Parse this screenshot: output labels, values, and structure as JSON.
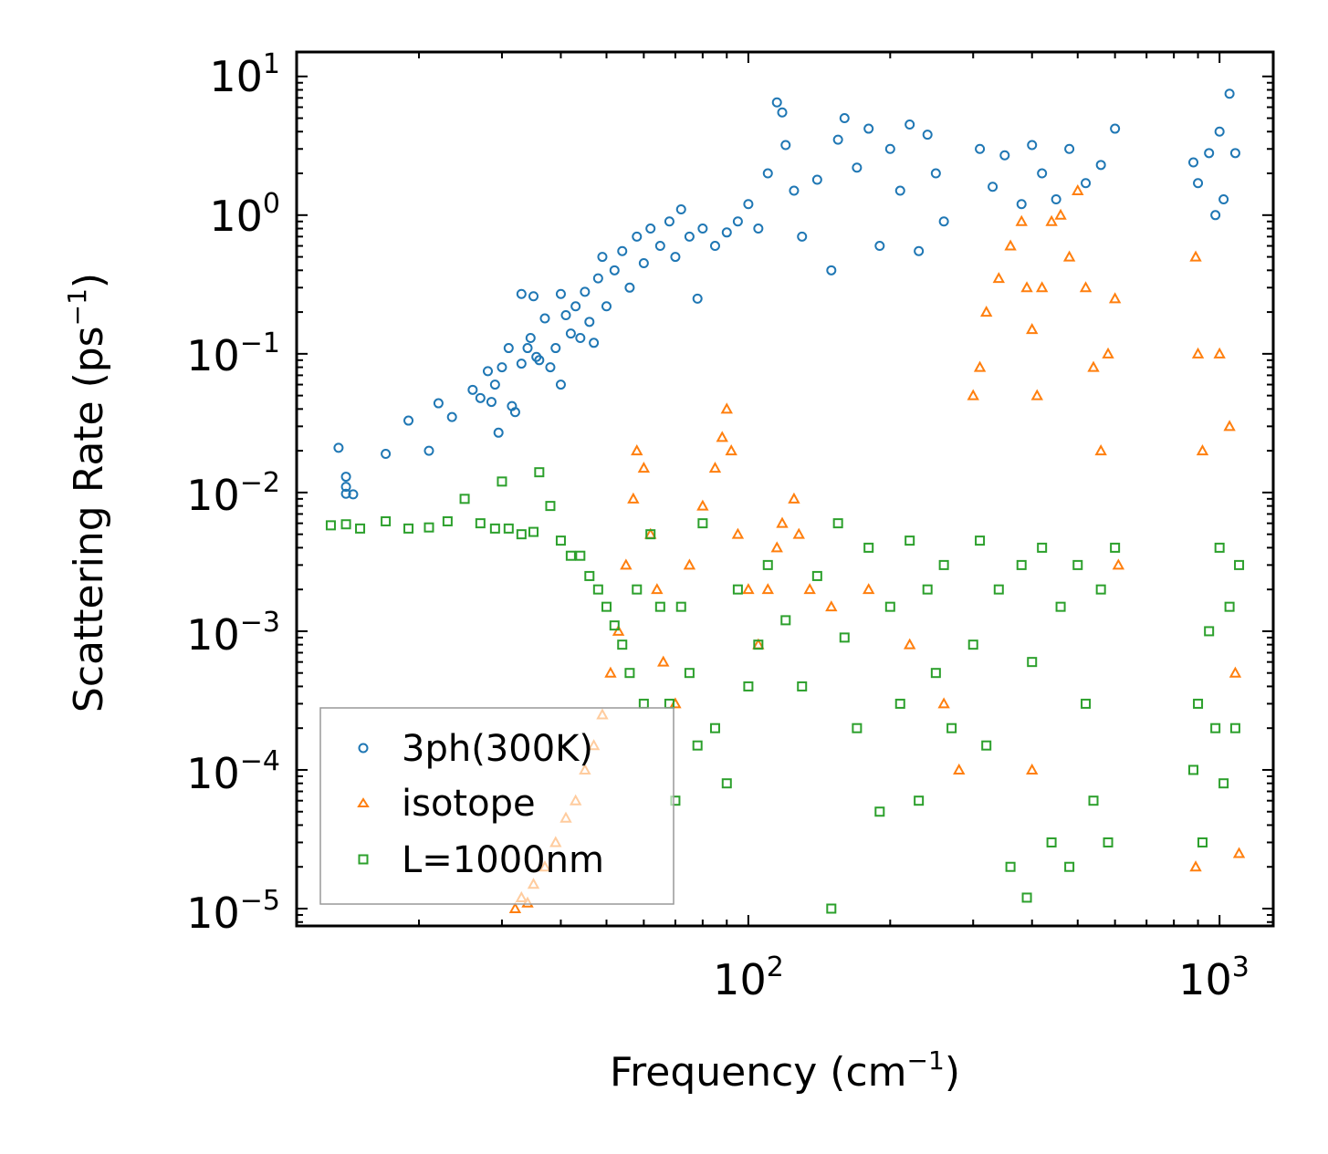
{
  "chart_data": {
    "type": "scatter",
    "title": "",
    "xlabel": "Frequency (cm",
    "xlabel_sup": "−1",
    "xlabel_tail": ")",
    "ylabel": "Scattering Rate (ps",
    "ylabel_sup": "−1",
    "ylabel_tail": ")",
    "xscale": "log",
    "yscale": "log",
    "xlim": [
      11,
      1300
    ],
    "ylim": [
      7.5e-06,
      15
    ],
    "xticks": [
      {
        "base": "10",
        "exp": "2",
        "value": 100
      },
      {
        "base": "10",
        "exp": "3",
        "value": 1000
      }
    ],
    "yticks": [
      {
        "base": "10",
        "exp": "1",
        "value": 10
      },
      {
        "base": "10",
        "exp": "0",
        "value": 1
      },
      {
        "base": "10",
        "exp": "−1",
        "value": 0.1
      },
      {
        "base": "10",
        "exp": "−2",
        "value": 0.01
      },
      {
        "base": "10",
        "exp": "−3",
        "value": 0.001
      },
      {
        "base": "10",
        "exp": "−4",
        "value": 0.0001
      },
      {
        "base": "10",
        "exp": "−5",
        "value": 1e-05
      }
    ],
    "legend_position": "lower-left",
    "series": [
      {
        "name": "3ph(300K)",
        "marker": "circle",
        "color": "#1f77b4",
        "points": [
          [
            13.5,
            0.021
          ],
          [
            14,
            0.013
          ],
          [
            14,
            0.011
          ],
          [
            14,
            0.0098
          ],
          [
            14.5,
            0.0097
          ],
          [
            17,
            0.019
          ],
          [
            19,
            0.033
          ],
          [
            21,
            0.02
          ],
          [
            22,
            0.044
          ],
          [
            23.5,
            0.035
          ],
          [
            26,
            0.055
          ],
          [
            27,
            0.048
          ],
          [
            28,
            0.075
          ],
          [
            28.5,
            0.045
          ],
          [
            29,
            0.06
          ],
          [
            29.5,
            0.027
          ],
          [
            30,
            0.08
          ],
          [
            31,
            0.11
          ],
          [
            31.5,
            0.042
          ],
          [
            32,
            0.038
          ],
          [
            33,
            0.27
          ],
          [
            33,
            0.085
          ],
          [
            34,
            0.11
          ],
          [
            34.5,
            0.13
          ],
          [
            35,
            0.26
          ],
          [
            35.5,
            0.095
          ],
          [
            36,
            0.09
          ],
          [
            37,
            0.18
          ],
          [
            38,
            0.08
          ],
          [
            39,
            0.11
          ],
          [
            40,
            0.27
          ],
          [
            40,
            0.06
          ],
          [
            41,
            0.19
          ],
          [
            42,
            0.14
          ],
          [
            43,
            0.22
          ],
          [
            44,
            0.13
          ],
          [
            45,
            0.28
          ],
          [
            46,
            0.17
          ],
          [
            47,
            0.12
          ],
          [
            48,
            0.35
          ],
          [
            49,
            0.5
          ],
          [
            50,
            0.22
          ],
          [
            52,
            0.4
          ],
          [
            54,
            0.55
          ],
          [
            56,
            0.3
          ],
          [
            58,
            0.7
          ],
          [
            60,
            0.45
          ],
          [
            62,
            0.8
          ],
          [
            65,
            0.6
          ],
          [
            68,
            0.9
          ],
          [
            70,
            0.5
          ],
          [
            72,
            1.1
          ],
          [
            75,
            0.7
          ],
          [
            78,
            0.25
          ],
          [
            80,
            0.8
          ],
          [
            85,
            0.6
          ],
          [
            90,
            0.75
          ],
          [
            95,
            0.9
          ],
          [
            100,
            1.2
          ],
          [
            105,
            0.8
          ],
          [
            110,
            2.0
          ],
          [
            115,
            6.5
          ],
          [
            118,
            5.5
          ],
          [
            120,
            3.2
          ],
          [
            125,
            1.5
          ],
          [
            130,
            0.7
          ],
          [
            140,
            1.8
          ],
          [
            150,
            0.4
          ],
          [
            155,
            3.5
          ],
          [
            160,
            5.0
          ],
          [
            170,
            2.2
          ],
          [
            180,
            4.2
          ],
          [
            190,
            0.6
          ],
          [
            200,
            3.0
          ],
          [
            210,
            1.5
          ],
          [
            220,
            4.5
          ],
          [
            230,
            0.55
          ],
          [
            240,
            3.8
          ],
          [
            250,
            2.0
          ],
          [
            260,
            0.9
          ],
          [
            310,
            3.0
          ],
          [
            330,
            1.6
          ],
          [
            350,
            2.7
          ],
          [
            380,
            1.2
          ],
          [
            400,
            3.2
          ],
          [
            420,
            2.0
          ],
          [
            450,
            1.3
          ],
          [
            480,
            3.0
          ],
          [
            520,
            1.7
          ],
          [
            560,
            2.3
          ],
          [
            600,
            4.2
          ],
          [
            880,
            2.4
          ],
          [
            900,
            1.7
          ],
          [
            950,
            2.8
          ],
          [
            980,
            1.0
          ],
          [
            1000,
            4.0
          ],
          [
            1020,
            1.3
          ],
          [
            1050,
            7.5
          ],
          [
            1080,
            2.8
          ]
        ]
      },
      {
        "name": "isotope",
        "marker": "triangle",
        "color": "#ff7f0e",
        "points": [
          [
            32,
            1e-05
          ],
          [
            33,
            1.2e-05
          ],
          [
            34,
            1.1e-05
          ],
          [
            35,
            1.5e-05
          ],
          [
            37,
            2e-05
          ],
          [
            39,
            3e-05
          ],
          [
            41,
            4.5e-05
          ],
          [
            43,
            6e-05
          ],
          [
            45,
            0.0001
          ],
          [
            47,
            0.00015
          ],
          [
            49,
            0.00025
          ],
          [
            51,
            0.0005
          ],
          [
            53,
            0.001
          ],
          [
            55,
            0.003
          ],
          [
            57,
            0.009
          ],
          [
            58,
            0.02
          ],
          [
            60,
            0.015
          ],
          [
            62,
            0.005
          ],
          [
            64,
            0.002
          ],
          [
            66,
            0.0006
          ],
          [
            70,
            0.0003
          ],
          [
            75,
            0.003
          ],
          [
            80,
            0.008
          ],
          [
            85,
            0.015
          ],
          [
            88,
            0.025
          ],
          [
            90,
            0.04
          ],
          [
            92,
            0.02
          ],
          [
            95,
            0.005
          ],
          [
            100,
            0.002
          ],
          [
            105,
            0.0008
          ],
          [
            110,
            0.002
          ],
          [
            115,
            0.004
          ],
          [
            118,
            0.006
          ],
          [
            125,
            0.009
          ],
          [
            128,
            0.005
          ],
          [
            135,
            0.002
          ],
          [
            150,
            0.0015
          ],
          [
            180,
            0.002
          ],
          [
            220,
            0.0008
          ],
          [
            260,
            0.0003
          ],
          [
            280,
            0.0001
          ],
          [
            300,
            0.05
          ],
          [
            310,
            0.08
          ],
          [
            320,
            0.2
          ],
          [
            340,
            0.35
          ],
          [
            360,
            0.6
          ],
          [
            380,
            0.9
          ],
          [
            390,
            0.3
          ],
          [
            400,
            0.15
          ],
          [
            410,
            0.05
          ],
          [
            420,
            0.3
          ],
          [
            440,
            0.9
          ],
          [
            460,
            1.0
          ],
          [
            480,
            0.5
          ],
          [
            500,
            1.5
          ],
          [
            520,
            0.3
          ],
          [
            540,
            0.08
          ],
          [
            560,
            0.02
          ],
          [
            580,
            0.1
          ],
          [
            600,
            0.25
          ],
          [
            610,
            0.003
          ],
          [
            890,
            0.5
          ],
          [
            900,
            0.1
          ],
          [
            920,
            0.02
          ],
          [
            1000,
            0.1
          ],
          [
            1050,
            0.03
          ],
          [
            1080,
            0.0005
          ],
          [
            890,
            2e-05
          ],
          [
            1100,
            2.5e-05
          ],
          [
            400,
            0.0001
          ]
        ]
      },
      {
        "name": "L=1000nm",
        "marker": "square",
        "color": "#2ca02c",
        "points": [
          [
            13,
            0.0058
          ],
          [
            14,
            0.0059
          ],
          [
            15,
            0.0055
          ],
          [
            17,
            0.0062
          ],
          [
            19,
            0.0055
          ],
          [
            21,
            0.0056
          ],
          [
            23,
            0.0062
          ],
          [
            25,
            0.009
          ],
          [
            27,
            0.006
          ],
          [
            29,
            0.0055
          ],
          [
            30,
            0.012
          ],
          [
            31,
            0.0055
          ],
          [
            33,
            0.005
          ],
          [
            35,
            0.0052
          ],
          [
            36,
            0.014
          ],
          [
            38,
            0.008
          ],
          [
            40,
            0.0045
          ],
          [
            42,
            0.0035
          ],
          [
            44,
            0.0035
          ],
          [
            46,
            0.0025
          ],
          [
            48,
            0.002
          ],
          [
            50,
            0.0015
          ],
          [
            52,
            0.0011
          ],
          [
            54,
            0.0008
          ],
          [
            56,
            0.0005
          ],
          [
            58,
            0.002
          ],
          [
            60,
            0.0003
          ],
          [
            62,
            0.005
          ],
          [
            65,
            0.0015
          ],
          [
            68,
            0.0003
          ],
          [
            70,
            6e-05
          ],
          [
            72,
            0.0015
          ],
          [
            75,
            0.0005
          ],
          [
            78,
            0.00015
          ],
          [
            80,
            0.006
          ],
          [
            85,
            0.0002
          ],
          [
            90,
            8e-05
          ],
          [
            95,
            0.002
          ],
          [
            100,
            0.0004
          ],
          [
            105,
            0.0008
          ],
          [
            110,
            0.003
          ],
          [
            120,
            0.0012
          ],
          [
            130,
            0.0004
          ],
          [
            140,
            0.0025
          ],
          [
            150,
            1e-05
          ],
          [
            155,
            0.006
          ],
          [
            160,
            0.0009
          ],
          [
            170,
            0.0002
          ],
          [
            180,
            0.004
          ],
          [
            190,
            5e-05
          ],
          [
            200,
            0.0015
          ],
          [
            210,
            0.0003
          ],
          [
            220,
            0.0045
          ],
          [
            230,
            6e-05
          ],
          [
            240,
            0.002
          ],
          [
            250,
            0.0005
          ],
          [
            260,
            0.003
          ],
          [
            270,
            0.0002
          ],
          [
            300,
            0.0008
          ],
          [
            310,
            0.0045
          ],
          [
            320,
            0.00015
          ],
          [
            340,
            0.002
          ],
          [
            360,
            2e-05
          ],
          [
            380,
            0.003
          ],
          [
            390,
            1.2e-05
          ],
          [
            400,
            0.0006
          ],
          [
            420,
            0.004
          ],
          [
            440,
            3e-05
          ],
          [
            460,
            0.0015
          ],
          [
            480,
            2e-05
          ],
          [
            500,
            0.003
          ],
          [
            520,
            0.0003
          ],
          [
            540,
            6e-05
          ],
          [
            560,
            0.002
          ],
          [
            580,
            3e-05
          ],
          [
            600,
            0.004
          ],
          [
            880,
            0.0001
          ],
          [
            900,
            0.0003
          ],
          [
            920,
            3e-05
          ],
          [
            950,
            0.001
          ],
          [
            980,
            0.0002
          ],
          [
            1000,
            0.004
          ],
          [
            1020,
            8e-05
          ],
          [
            1050,
            0.0015
          ],
          [
            1080,
            0.0002
          ],
          [
            1100,
            0.003
          ]
        ]
      }
    ]
  }
}
